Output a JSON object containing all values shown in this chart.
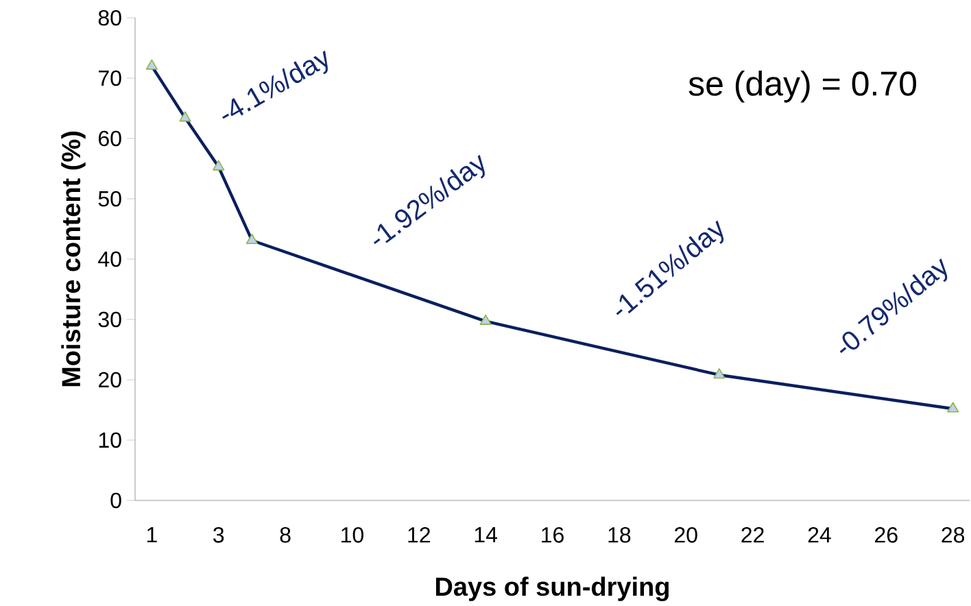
{
  "chart_data": {
    "type": "line",
    "xlabel": "Days of sun-drying",
    "ylabel": "Moisture content (%)",
    "categories": [
      "1",
      null,
      "3",
      null,
      "8",
      null,
      "10",
      null,
      "12",
      null,
      "14",
      null,
      "16",
      null,
      "18",
      null,
      "20",
      null,
      "22",
      null,
      "24",
      null,
      "26",
      null,
      "28"
    ],
    "series": [
      {
        "color": "#0b1f5e",
        "values": [
          72,
          63.4,
          55.3,
          43.1,
          null,
          null,
          null,
          null,
          null,
          null,
          29.7,
          null,
          null,
          null,
          null,
          null,
          null,
          20.8,
          null,
          null,
          null,
          null,
          null,
          null,
          15.2
        ]
      }
    ],
    "ylim": [
      0,
      80
    ],
    "yticks": [
      0,
      10,
      20,
      30,
      40,
      50,
      60,
      70,
      80
    ],
    "marker": "triangle",
    "annotations": [
      "-4.1%/day",
      "-1.92%/day",
      "-1.51%/day",
      "-0.79%/day",
      "se (day) =  0.70"
    ]
  }
}
